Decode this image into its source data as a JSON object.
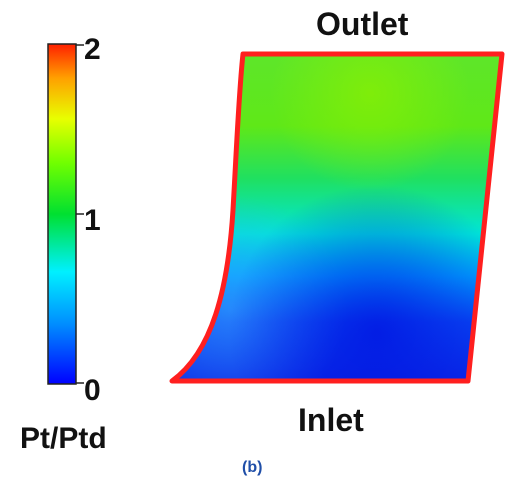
{
  "colorbar": {
    "title": "Pt/Ptd",
    "ticks": [
      "2",
      "1",
      "0"
    ],
    "min": 0,
    "max": 2,
    "colormap": [
      "#0000ff",
      "#00a8ff",
      "#00ffe6",
      "#00e030",
      "#4cff00",
      "#d8ff00",
      "#ffb000",
      "#ff2000"
    ]
  },
  "passage": {
    "outlet_label": "Outlet",
    "inlet_label": "Inlet",
    "outline_color": "#ff1f1f",
    "field_colors": {
      "top": "#5be21a",
      "mid": "#00e0c8",
      "bottom": "#0a2cf0"
    }
  },
  "caption": "(b)"
}
